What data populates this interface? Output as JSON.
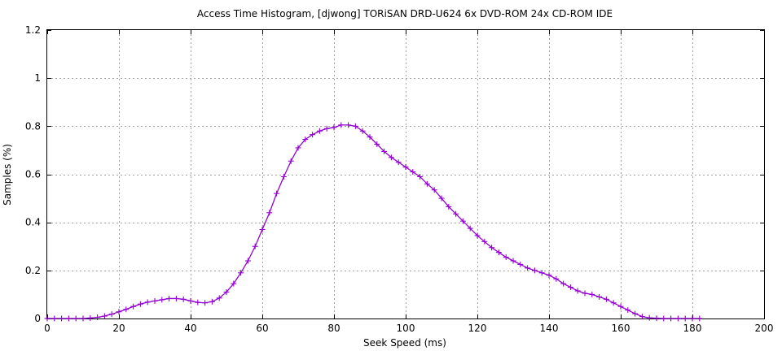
{
  "chart_data": {
    "type": "line",
    "title": "Access Time Histogram, [djwong] TORiSAN DRD-U624 6x DVD-ROM 24x CD-ROM IDE",
    "xlabel": "Seek Speed (ms)",
    "ylabel": "Samples (%)",
    "xlim": [
      0,
      200
    ],
    "ylim": [
      0,
      1.2
    ],
    "xticks": [
      0,
      20,
      40,
      60,
      80,
      100,
      120,
      140,
      160,
      180,
      200
    ],
    "yticks": [
      0,
      0.2,
      0.4,
      0.6,
      0.8,
      1,
      1.2
    ],
    "ytick_labels": [
      "0",
      "0.2",
      "0.4",
      "0.6",
      "0.8",
      "1",
      "1.2"
    ],
    "grid": true,
    "legend": "none",
    "series_color": "#9400d3",
    "series": [
      {
        "x": [
          0,
          2,
          4,
          6,
          8,
          10,
          12,
          14,
          16,
          18,
          20,
          22,
          24,
          26,
          28,
          30,
          32,
          34,
          36,
          38,
          40,
          42,
          44,
          46,
          48,
          50,
          52,
          54,
          56,
          58,
          60,
          62,
          64,
          66,
          68,
          70,
          72,
          74,
          76,
          78,
          80,
          82,
          84,
          86,
          88,
          90,
          92,
          94,
          96,
          98,
          100,
          102,
          104,
          106,
          108,
          110,
          112,
          114,
          116,
          118,
          120,
          122,
          124,
          126,
          128,
          130,
          132,
          134,
          136,
          138,
          140,
          142,
          144,
          146,
          148,
          150,
          152,
          154,
          156,
          158,
          160,
          162,
          164,
          166,
          168,
          170,
          172,
          174,
          176,
          178,
          180,
          182
        ],
        "y": [
          0,
          0,
          0,
          0,
          0,
          0,
          0.002,
          0.005,
          0.01,
          0.018,
          0.028,
          0.038,
          0.05,
          0.06,
          0.068,
          0.073,
          0.078,
          0.083,
          0.083,
          0.08,
          0.073,
          0.067,
          0.065,
          0.07,
          0.085,
          0.11,
          0.145,
          0.19,
          0.24,
          0.3,
          0.37,
          0.44,
          0.52,
          0.59,
          0.655,
          0.71,
          0.745,
          0.765,
          0.78,
          0.79,
          0.795,
          0.805,
          0.805,
          0.8,
          0.78,
          0.755,
          0.725,
          0.695,
          0.67,
          0.65,
          0.63,
          0.61,
          0.59,
          0.56,
          0.535,
          0.5,
          0.465,
          0.435,
          0.405,
          0.375,
          0.345,
          0.32,
          0.295,
          0.275,
          0.255,
          0.24,
          0.225,
          0.21,
          0.2,
          0.19,
          0.18,
          0.165,
          0.145,
          0.13,
          0.115,
          0.105,
          0.1,
          0.09,
          0.08,
          0.065,
          0.05,
          0.035,
          0.02,
          0.008,
          0.003,
          0.001,
          0,
          0,
          0,
          0,
          0,
          0
        ]
      }
    ]
  }
}
